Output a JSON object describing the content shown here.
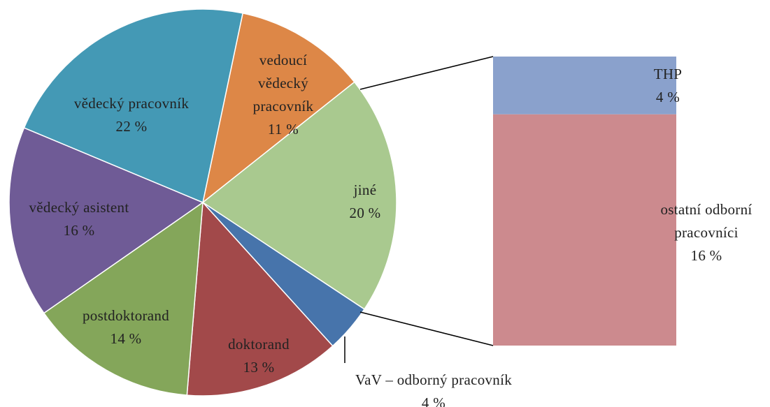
{
  "chart_data": {
    "type": "pie-of-bar",
    "categories": [
      "vedoucí vědecký pracovník",
      "jiné",
      "VaV – odborný pracovník",
      "doktorand",
      "postdoktorand",
      "vědecký asistent",
      "vědecký pracovník"
    ],
    "values": [
      11,
      20,
      4,
      13,
      14,
      16,
      22
    ],
    "value_labels": [
      "11 %",
      "20 %",
      "4 %",
      "13 %",
      "14 %",
      "16 %",
      "22 %"
    ],
    "colors": [
      "#dd8747",
      "#a9c98f",
      "#4774ab",
      "#a2494a",
      "#84a65a",
      "#6f5b96",
      "#4499b5"
    ],
    "secondary": {
      "type": "bar",
      "categories": [
        "THP",
        "ostatní odborní pracovníci"
      ],
      "values": [
        4,
        16
      ],
      "value_labels": [
        "4 %",
        "16 %"
      ],
      "colors": [
        "#8aa1cc",
        "#cc8a8e"
      ]
    }
  }
}
